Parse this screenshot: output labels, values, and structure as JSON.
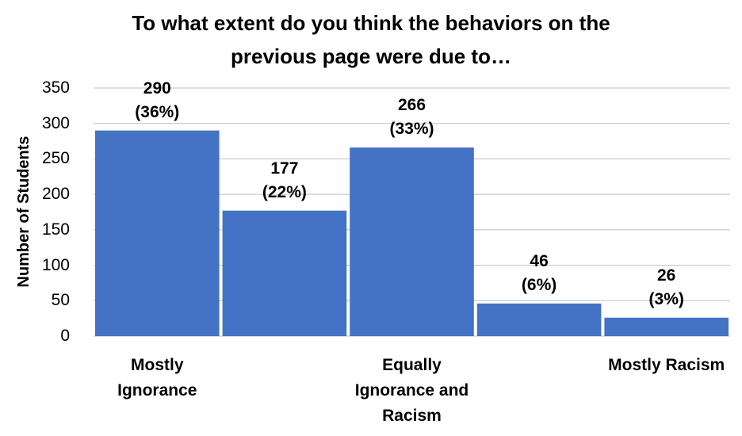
{
  "chart_data": {
    "type": "bar",
    "title": "To what extent do you think the behaviors on the previous page were due to…",
    "y_label": "Number of Students",
    "categories": [
      "Mostly Ignorance",
      null,
      "Equally Ignorance and Racism",
      null,
      "Mostly Racism"
    ],
    "values": [
      290,
      177,
      266,
      46,
      26
    ],
    "value_labels": [
      "290\n(36%)",
      "177\n(22%)",
      "266\n(33%)",
      "46\n(6%)",
      "26\n(3%)"
    ],
    "color": "#4472c4",
    "ylim": [
      0,
      350
    ],
    "yticks": [
      0,
      50,
      100,
      150,
      200,
      250,
      300,
      350
    ],
    "grid": true
  }
}
